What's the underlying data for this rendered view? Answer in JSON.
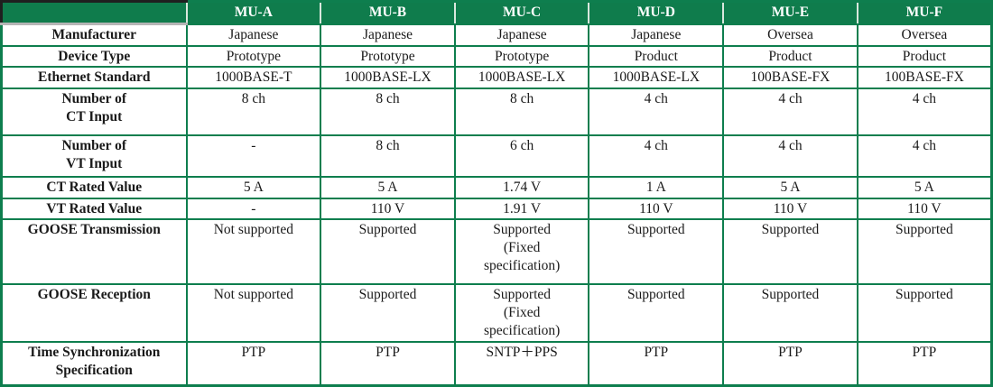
{
  "colors": {
    "header_green": "#0F7C4C",
    "border_green": "#0E7E4E",
    "header_separator_light": "#D9E7DD",
    "corner_shadow_gray": "#B5B5B5",
    "header_text": "#FFFFFF",
    "body_text": "#1A1A1A"
  },
  "chart_data": {
    "type": "table",
    "title": "",
    "columns": [
      "",
      "MU-A",
      "MU-B",
      "MU-C",
      "MU-D",
      "MU-E",
      "MU-F"
    ],
    "row_labels": [
      "Manufacturer",
      "Device Type",
      "Ethernet Standard",
      "Number of CT Input",
      "Number of VT Input",
      "CT Rated Value",
      "VT Rated Value",
      "GOOSE Transmission",
      "GOOSE Reception",
      "Time Synchronization Specification"
    ]
  },
  "table": {
    "corner_label": "",
    "columns": [
      "MU-A",
      "MU-B",
      "MU-C",
      "MU-D",
      "MU-E",
      "MU-F"
    ],
    "rows": [
      {
        "label": "Manufacturer",
        "values": [
          "Japanese",
          "Japanese",
          "Japanese",
          "Japanese",
          "Oversea",
          "Oversea"
        ]
      },
      {
        "label": "Device Type",
        "values": [
          "Prototype",
          "Prototype",
          "Prototype",
          "Product",
          "Product",
          "Product"
        ]
      },
      {
        "label": "Ethernet Standard",
        "values": [
          "1000BASE-T",
          "1000BASE-LX",
          "1000BASE-LX",
          "1000BASE-LX",
          "100BASE-FX",
          "100BASE-FX"
        ]
      },
      {
        "label": "Number of\nCT Input",
        "values": [
          "8 ch",
          "8 ch",
          "8 ch",
          "4 ch",
          "4 ch",
          "4 ch"
        ]
      },
      {
        "label": "Number of\nVT Input",
        "values": [
          "-",
          "8 ch",
          "6 ch",
          "4 ch",
          "4 ch",
          "4 ch"
        ]
      },
      {
        "label": "CT Rated Value",
        "values": [
          "5 A",
          "5 A",
          "1.74 V",
          "1 A",
          "5 A",
          "5 A"
        ]
      },
      {
        "label": "VT Rated Value",
        "values": [
          "-",
          "110 V",
          "1.91 V",
          "110 V",
          "110 V",
          "110 V"
        ]
      },
      {
        "label": "GOOSE Transmission",
        "values": [
          "Not supported",
          "Supported",
          "Supported\n(Fixed\nspecification)",
          "Supported",
          "Supported",
          "Supported"
        ]
      },
      {
        "label": "GOOSE Reception",
        "values": [
          "Not supported",
          "Supported",
          "Supported\n(Fixed\nspecification)",
          "Supported",
          "Supported",
          "Supported"
        ]
      },
      {
        "label": "Time Synchronization\nSpecification",
        "values": [
          "PTP",
          "PTP",
          "SNTP＋PPS",
          "PTP",
          "PTP",
          "PTP"
        ]
      }
    ]
  }
}
